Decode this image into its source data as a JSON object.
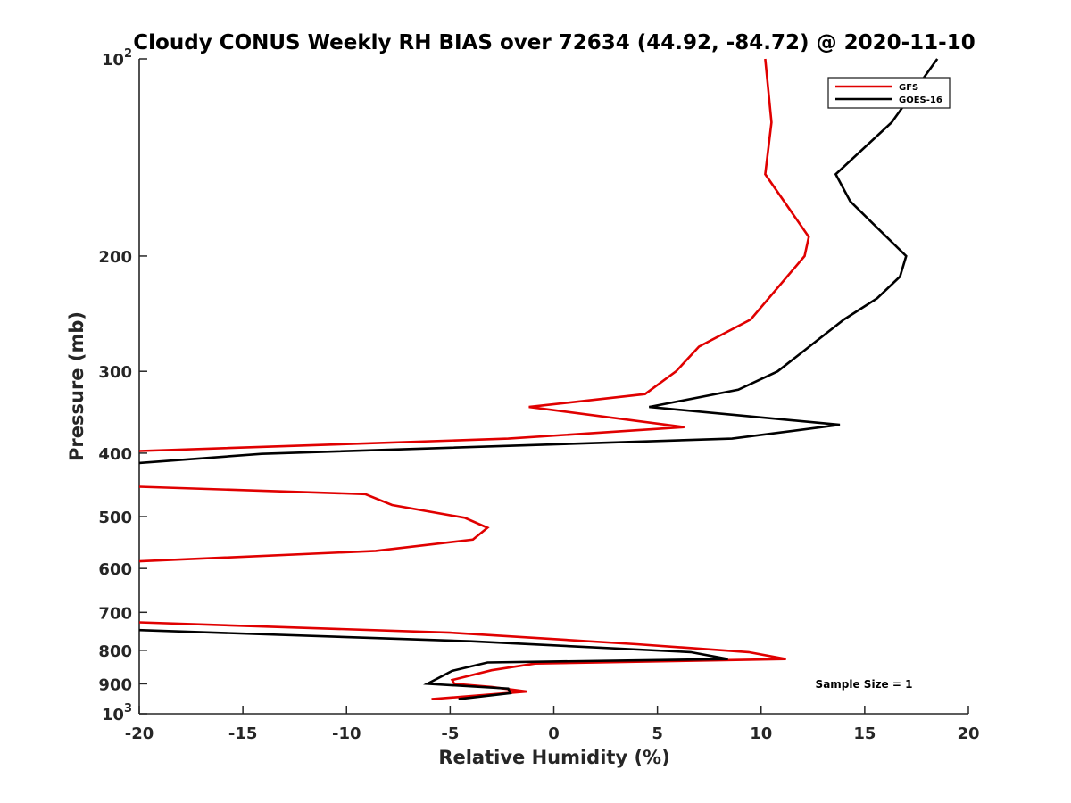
{
  "chart_data": {
    "type": "line",
    "title": "Cloudy CONUS Weekly RH BIAS over 72634 (44.92, -84.72) @ 2020-11-10",
    "xlabel": "Relative Humidity (%)",
    "ylabel": "Pressure (mb)",
    "xlim": [
      -20,
      20
    ],
    "ylim": [
      100,
      1000
    ],
    "yscale": "log",
    "y_reversed": true,
    "x_ticks": [
      {
        "value": -20,
        "label": "-20"
      },
      {
        "value": -15,
        "label": "-15"
      },
      {
        "value": -10,
        "label": "-10"
      },
      {
        "value": -5,
        "label": "-5"
      },
      {
        "value": 0,
        "label": "0"
      },
      {
        "value": 5,
        "label": "5"
      },
      {
        "value": 10,
        "label": "10"
      },
      {
        "value": 15,
        "label": "15"
      },
      {
        "value": 20,
        "label": "20"
      }
    ],
    "y_ticks": [
      {
        "value": 100,
        "base": "10",
        "exp": "2"
      },
      {
        "value": 200,
        "base": "200",
        "exp": ""
      },
      {
        "value": 300,
        "base": "300",
        "exp": ""
      },
      {
        "value": 400,
        "base": "400",
        "exp": ""
      },
      {
        "value": 500,
        "base": "500",
        "exp": ""
      },
      {
        "value": 600,
        "base": "600",
        "exp": ""
      },
      {
        "value": 700,
        "base": "700",
        "exp": ""
      },
      {
        "value": 800,
        "base": "800",
        "exp": ""
      },
      {
        "value": 900,
        "base": "900",
        "exp": ""
      },
      {
        "value": 1000,
        "base": "10",
        "exp": "3"
      }
    ],
    "grid": false,
    "legend_position": "top-right",
    "series": [
      {
        "name": "GFS",
        "color": "#e00000",
        "segments": [
          [
            [
              10.2,
              100
            ],
            [
              10.5,
              125
            ],
            [
              10.2,
              150
            ],
            [
              12.3,
              187
            ],
            [
              12.1,
              200
            ],
            [
              9.5,
              250
            ],
            [
              7.0,
              275
            ],
            [
              5.9,
              300
            ],
            [
              4.4,
              325
            ],
            [
              -1.2,
              340
            ],
            [
              6.3,
              365
            ],
            [
              -2.2,
              380
            ],
            [
              -20,
              397
            ]
          ],
          [
            [
              -20,
              450
            ],
            [
              -9.1,
              462
            ],
            [
              -7.8,
              480
            ],
            [
              -4.3,
              502
            ],
            [
              -3.2,
              520
            ],
            [
              -3.9,
              542
            ],
            [
              -8.6,
              564
            ],
            [
              -20,
              585
            ]
          ],
          [
            [
              -20,
              725
            ],
            [
              -5.0,
              752
            ],
            [
              4.0,
              783
            ],
            [
              9.4,
              805
            ],
            [
              11.2,
              825
            ],
            [
              -0.9,
              838
            ],
            [
              -3.0,
              858
            ],
            [
              -4.9,
              888
            ],
            [
              -4.8,
              900
            ],
            [
              -3.0,
              910
            ],
            [
              -1.3,
              925
            ],
            [
              -5.9,
              950
            ]
          ]
        ]
      },
      {
        "name": "GOES-16",
        "color": "#000000",
        "segments": [
          [
            [
              18.5,
              100
            ],
            [
              16.3,
              125
            ],
            [
              13.6,
              150
            ],
            [
              14.3,
              165
            ],
            [
              15.9,
              185
            ],
            [
              17.0,
              200
            ],
            [
              16.7,
              215
            ],
            [
              15.6,
              232
            ],
            [
              14.0,
              250
            ],
            [
              10.8,
              300
            ],
            [
              8.9,
              320
            ],
            [
              4.6,
              340
            ],
            [
              13.8,
              362
            ],
            [
              8.6,
              380
            ],
            [
              -14.1,
              401
            ],
            [
              -20,
              414
            ]
          ],
          [
            [
              -20,
              745
            ],
            [
              -4.0,
              775
            ],
            [
              6.6,
              805
            ],
            [
              8.4,
              825
            ],
            [
              -3.2,
              835
            ],
            [
              -4.9,
              860
            ],
            [
              -6.1,
              900
            ],
            [
              -2.2,
              915
            ],
            [
              -2.1,
              930
            ],
            [
              -4.6,
              950
            ]
          ]
        ]
      }
    ],
    "annotations": [
      {
        "text": "Sample Size = 1"
      }
    ]
  }
}
